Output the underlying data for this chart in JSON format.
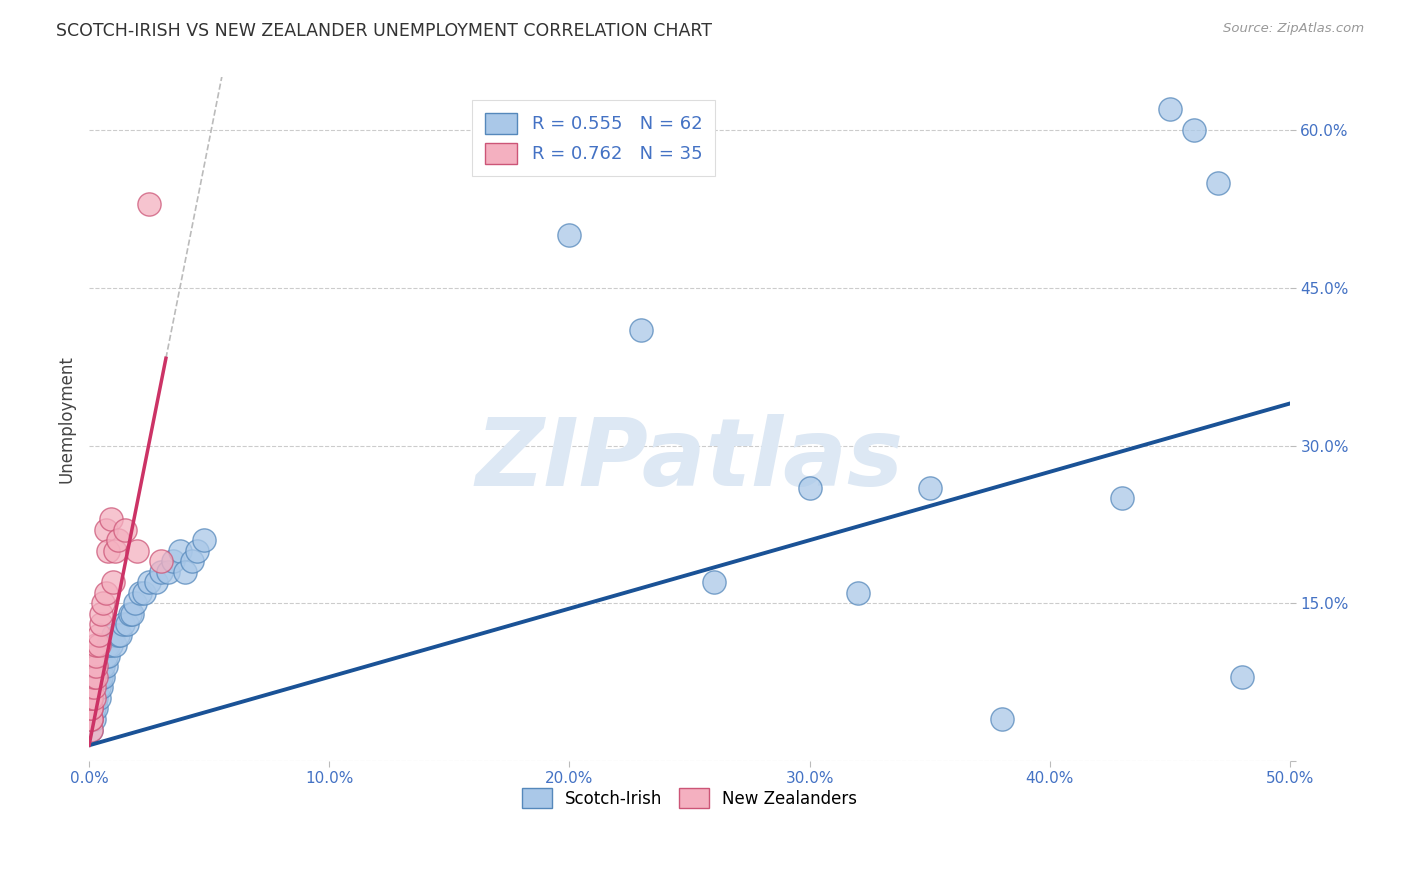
{
  "title": "SCOTCH-IRISH VS NEW ZEALANDER UNEMPLOYMENT CORRELATION CHART",
  "source": "Source: ZipAtlas.com",
  "ylabel_label": "Unemployment",
  "xlim": [
    0.0,
    0.5
  ],
  "ylim": [
    0.0,
    0.65
  ],
  "legend_label1": "R = 0.555   N = 62",
  "legend_label2": "R = 0.762   N = 35",
  "legend_bottom": [
    "Scotch-Irish",
    "New Zealanders"
  ],
  "watermark": "ZIPatlas",
  "scotch_irish_x": [
    0.001,
    0.001,
    0.001,
    0.001,
    0.001,
    0.001,
    0.001,
    0.002,
    0.002,
    0.002,
    0.002,
    0.002,
    0.003,
    0.003,
    0.003,
    0.003,
    0.004,
    0.004,
    0.004,
    0.005,
    0.005,
    0.005,
    0.006,
    0.006,
    0.007,
    0.007,
    0.008,
    0.008,
    0.009,
    0.01,
    0.011,
    0.012,
    0.013,
    0.014,
    0.016,
    0.017,
    0.018,
    0.019,
    0.021,
    0.023,
    0.025,
    0.028,
    0.03,
    0.033,
    0.035,
    0.038,
    0.04,
    0.043,
    0.045,
    0.048,
    0.2,
    0.23,
    0.26,
    0.3,
    0.32,
    0.35,
    0.38,
    0.43,
    0.45,
    0.46,
    0.47,
    0.48
  ],
  "scotch_irish_y": [
    0.03,
    0.04,
    0.04,
    0.05,
    0.05,
    0.06,
    0.07,
    0.04,
    0.05,
    0.06,
    0.06,
    0.07,
    0.05,
    0.06,
    0.07,
    0.08,
    0.06,
    0.07,
    0.08,
    0.07,
    0.08,
    0.09,
    0.08,
    0.09,
    0.09,
    0.1,
    0.1,
    0.11,
    0.11,
    0.12,
    0.11,
    0.12,
    0.12,
    0.13,
    0.13,
    0.14,
    0.14,
    0.15,
    0.16,
    0.16,
    0.17,
    0.17,
    0.18,
    0.18,
    0.19,
    0.2,
    0.18,
    0.19,
    0.2,
    0.21,
    0.5,
    0.41,
    0.17,
    0.26,
    0.16,
    0.26,
    0.04,
    0.25,
    0.62,
    0.6,
    0.55,
    0.08
  ],
  "new_zealander_x": [
    0.001,
    0.001,
    0.001,
    0.001,
    0.001,
    0.001,
    0.001,
    0.001,
    0.001,
    0.001,
    0.002,
    0.002,
    0.002,
    0.002,
    0.002,
    0.003,
    0.003,
    0.003,
    0.003,
    0.004,
    0.004,
    0.005,
    0.005,
    0.006,
    0.007,
    0.007,
    0.008,
    0.009,
    0.01,
    0.011,
    0.012,
    0.015,
    0.02,
    0.025,
    0.03
  ],
  "new_zealander_y": [
    0.03,
    0.04,
    0.04,
    0.05,
    0.05,
    0.06,
    0.06,
    0.07,
    0.07,
    0.08,
    0.06,
    0.07,
    0.08,
    0.09,
    0.1,
    0.08,
    0.09,
    0.1,
    0.11,
    0.11,
    0.12,
    0.13,
    0.14,
    0.15,
    0.16,
    0.22,
    0.2,
    0.23,
    0.17,
    0.2,
    0.21,
    0.22,
    0.2,
    0.53,
    0.19
  ],
  "scotch_color": "#aac8e8",
  "scotch_edge_color": "#5588bb",
  "scotch_line_color": "#1a5296",
  "nz_color": "#f4b0c0",
  "nz_edge_color": "#cc5577",
  "nz_line_color": "#cc3366",
  "background_color": "#ffffff",
  "grid_color": "#cccccc",
  "title_color": "#333333",
  "axis_label_color": "#4472c4",
  "watermark_color": "#dde8f4"
}
